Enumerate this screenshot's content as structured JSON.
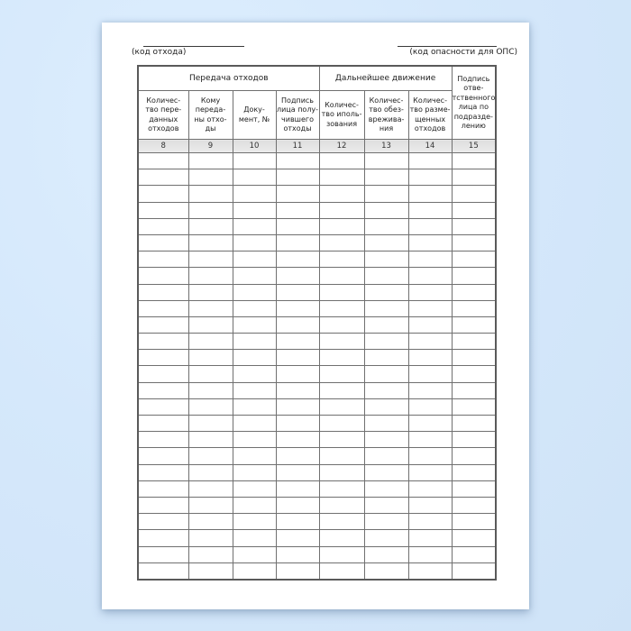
{
  "document": {
    "code_label_left": "(код отхода)",
    "code_label_right": "(код опасности для ОПС)"
  },
  "table": {
    "group_headers": [
      {
        "label": "Передача отходов"
      },
      {
        "label": "Дальнейшее движение"
      }
    ],
    "columns": [
      {
        "header": "Количес-\nтво пере-\nданных\nотходов",
        "number": "8"
      },
      {
        "header": "Кому\nпереда-\nны отхо-\nды",
        "number": "9"
      },
      {
        "header": "Доку-\nмент, №",
        "number": "10"
      },
      {
        "header": "Подпись\nлица полу-\nчившего\nотходы",
        "number": "11"
      },
      {
        "header": "Количес-\nтво иполь-\nзования",
        "number": "12"
      },
      {
        "header": "Количес-\nтво обез-\nврежива-\nния",
        "number": "13"
      },
      {
        "header": "Количес-\nтво разме-\nщенных\nотходов",
        "number": "14"
      },
      {
        "header": "Подпись\nотве-\nтственного\nлица по\nподразде-\nлению",
        "number": "15"
      }
    ],
    "empty_row_count": 26,
    "empty_cell_value": ""
  },
  "colors": {
    "background": "#d6e9fc",
    "paper": "#ffffff",
    "table_border": "#707070",
    "table_outer_border": "#5a5a5a",
    "number_row_background": "#e3e3e3",
    "text": "#222222"
  }
}
